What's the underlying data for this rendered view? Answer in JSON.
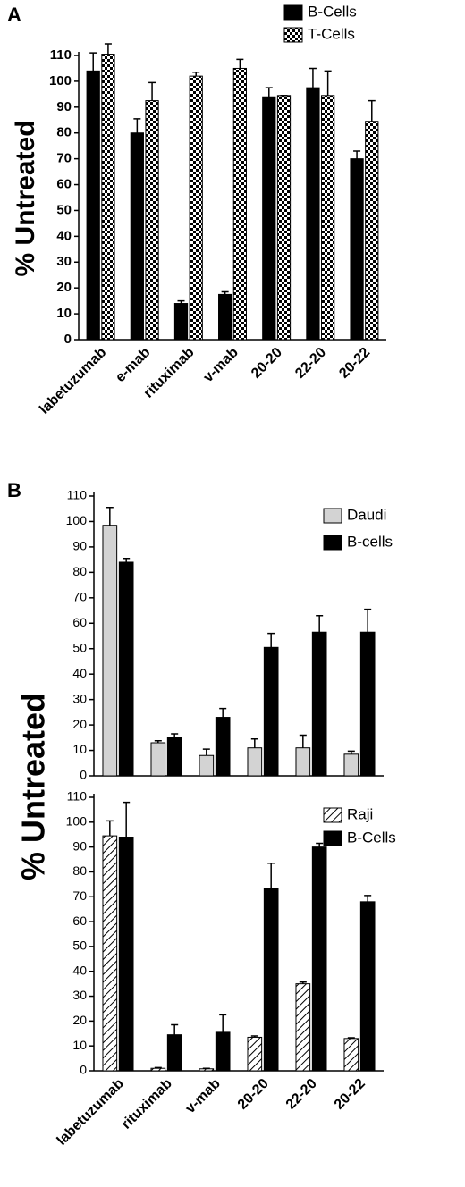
{
  "chart_data": [
    {
      "type": "bar",
      "panel_label": "A",
      "ylabel": "% Untreated",
      "categories": [
        "labetuzumab",
        "e-mab",
        "rituximab",
        "v-mab",
        "20-20",
        "22-20",
        "20-22"
      ],
      "series": [
        {
          "name": "B-Cells",
          "color": "#000000",
          "pattern": "solid",
          "values": [
            104,
            80,
            14,
            17.5,
            94,
            97.5,
            70
          ],
          "errors": [
            7,
            5.5,
            1,
            1,
            3.5,
            7.5,
            3
          ]
        },
        {
          "name": "T-Cells",
          "color": "#000000",
          "pattern": "checker",
          "values": [
            110.5,
            92.5,
            102,
            105,
            94.5,
            94.5,
            84.5
          ],
          "errors": [
            4,
            7,
            1.5,
            3.5,
            0,
            9.5,
            8
          ]
        }
      ],
      "ylim": [
        0,
        110
      ],
      "yticks": [
        0,
        10,
        20,
        30,
        40,
        50,
        60,
        70,
        80,
        90,
        100,
        110
      ],
      "legend": "upper right"
    },
    {
      "type": "bar",
      "panel_label": "B",
      "ylabel": "% Untreated",
      "categories": [
        null,
        null,
        null,
        null,
        null,
        null
      ],
      "series": [
        {
          "name": "Daudi",
          "color": "#d3d3d3",
          "pattern": "solid",
          "values": [
            98.5,
            13,
            8,
            11,
            11,
            8.5
          ],
          "errors": [
            7,
            0.8,
            2.5,
            3.5,
            5,
            1.2
          ]
        },
        {
          "name": "B-cells",
          "color": "#000000",
          "pattern": "solid",
          "values": [
            84,
            15,
            23,
            50.5,
            56.5,
            56.5
          ],
          "errors": [
            1.5,
            1.5,
            3.5,
            5.5,
            6.5,
            9
          ]
        }
      ],
      "ylim": [
        0,
        110
      ],
      "yticks": [
        0,
        10,
        20,
        30,
        40,
        50,
        60,
        70,
        80,
        90,
        100,
        110
      ],
      "legend": "upper right"
    },
    {
      "type": "bar",
      "categories": [
        "labetuzumab",
        "rituximab",
        "v-mab",
        "20-20",
        "22-20",
        "20-22"
      ],
      "series": [
        {
          "name": "Raji",
          "color": "#000000",
          "pattern": "hatch",
          "values": [
            94.5,
            1,
            0.8,
            13.5,
            35,
            13
          ],
          "errors": [
            6,
            0.3,
            0.2,
            0.5,
            0.7,
            0.3
          ]
        },
        {
          "name": "B-Cells",
          "color": "#000000",
          "pattern": "solid",
          "values": [
            94,
            14.5,
            15.5,
            73.5,
            90,
            68
          ],
          "errors": [
            14,
            4,
            7,
            10,
            1.5,
            2.5
          ]
        }
      ],
      "ylim": [
        0,
        110
      ],
      "yticks": [
        0,
        10,
        20,
        30,
        40,
        50,
        60,
        70,
        80,
        90,
        100,
        110
      ],
      "legend": "upper right"
    }
  ]
}
